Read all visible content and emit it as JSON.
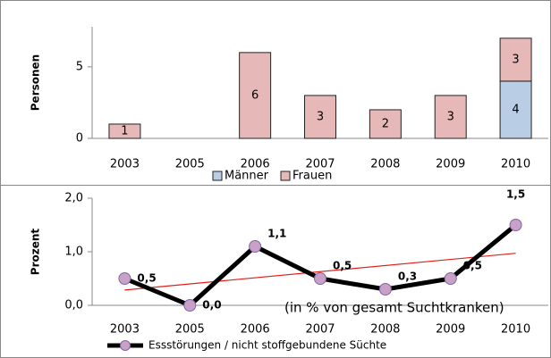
{
  "chart_data": [
    {
      "type": "bar",
      "stacked": true,
      "ylabel": "Personen",
      "categories": [
        "2003",
        "2005",
        "2006",
        "2007",
        "2008",
        "2009",
        "2010"
      ],
      "series": [
        {
          "name": "Männer",
          "color": "#b9cde5",
          "values": [
            null,
            null,
            null,
            null,
            null,
            null,
            4
          ]
        },
        {
          "name": "Frauen",
          "color": "#e6b9b8",
          "values": [
            1,
            null,
            6,
            3,
            2,
            3,
            3
          ]
        }
      ],
      "ylim": [
        0,
        7.8
      ],
      "yticks": [
        0,
        5
      ],
      "legend": "bottom"
    },
    {
      "type": "line",
      "ylabel": "Prozent",
      "categories": [
        "2003",
        "2005",
        "2006",
        "2007",
        "2008",
        "2009",
        "2010"
      ],
      "series": [
        {
          "name": "Essstörungen / nicht stoffgebundene Süchte",
          "color": "#000000",
          "marker_color": "#c9a0c8",
          "values": [
            0.5,
            0.0,
            1.1,
            0.5,
            0.3,
            0.5,
            1.5
          ],
          "value_labels": [
            "0,5",
            "0,0",
            "1,1",
            "0,5",
            "0,3",
            "0,5",
            "1,5"
          ]
        }
      ],
      "trendline": true,
      "trend_color": "#e0201b",
      "annotation": "(in % von gesamt Suchtkranken)",
      "ylim": [
        0,
        2
      ],
      "yticks": [
        {
          "value": 0,
          "label": "0,0"
        },
        {
          "value": 1,
          "label": "1,0"
        },
        {
          "value": 2,
          "label": "2,0"
        }
      ],
      "legend": "bottom"
    }
  ]
}
